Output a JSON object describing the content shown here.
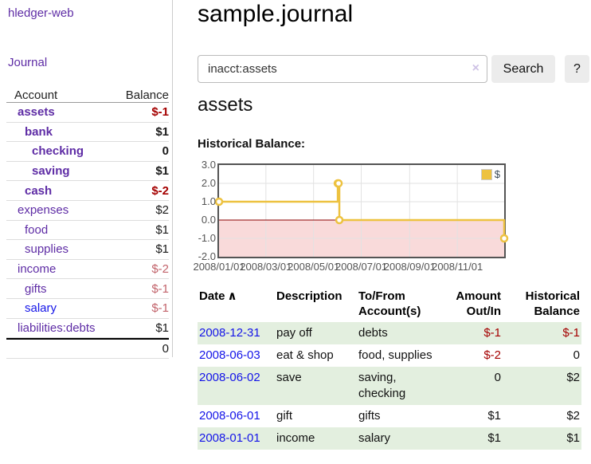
{
  "app": {
    "brand": "hledger-web",
    "nav": {
      "journal": "Journal"
    }
  },
  "sidebar": {
    "header": {
      "account": "Account",
      "balance": "Balance"
    },
    "accounts": [
      {
        "name": "assets",
        "balance": "$-1"
      },
      {
        "name": "bank",
        "balance": "$1"
      },
      {
        "name": "checking",
        "balance": "0"
      },
      {
        "name": "saving",
        "balance": "$1"
      },
      {
        "name": "cash",
        "balance": "$-2"
      },
      {
        "name": "expenses",
        "balance": "$2"
      },
      {
        "name": "food",
        "balance": "$1"
      },
      {
        "name": "supplies",
        "balance": "$1"
      },
      {
        "name": "income",
        "balance": "$-2"
      },
      {
        "name": "gifts",
        "balance": "$-1"
      },
      {
        "name": "salary",
        "balance": "$-1"
      },
      {
        "name": "liabilities:debts",
        "balance": "$1"
      }
    ],
    "total": "0"
  },
  "main": {
    "title": "sample.journal",
    "search": {
      "value": "inacct:assets",
      "clear_icon": "×",
      "button": "Search",
      "help_button": "?"
    },
    "account_heading": "assets",
    "chart_heading": "Historical Balance:"
  },
  "chart_data": {
    "type": "line",
    "step": true,
    "title": "Historical Balance:",
    "series": [
      {
        "name": "$",
        "points": [
          [
            "2008-01-01",
            1
          ],
          [
            "2008-06-01",
            2
          ],
          [
            "2008-06-02",
            2
          ],
          [
            "2008-06-03",
            0
          ],
          [
            "2008-12-31",
            -1
          ]
        ]
      }
    ],
    "xlim": [
      "2008-01-01",
      "2008-12-31"
    ],
    "ylim": [
      -2,
      3
    ],
    "y_tick_labels": [
      "3.0",
      "2.0",
      "1.0",
      "0.0",
      "-1.0",
      "-2.0"
    ],
    "x_ticks": [
      "2008/01/01",
      "2008/03/01",
      "2008/05/01",
      "2008/07/01",
      "2008/09/01",
      "2008/11/01"
    ],
    "legend": {
      "label": "$",
      "position": "top-right"
    },
    "grid": true,
    "colors": {
      "line": "#edc240",
      "marker_fill": "#ffffff",
      "grid": "#e2e2e2",
      "border": "#545454",
      "negative_region": "#f9dada",
      "zero_line": "#8b0000",
      "axis_text": "#545454"
    }
  },
  "register": {
    "headers": {
      "date": "Date",
      "description": "Description",
      "tofrom": "To/From Account(s)",
      "amount": "Amount Out/In",
      "historical": "Historical Balance"
    },
    "sort_icon": "∧",
    "rows": [
      {
        "date": "2008-12-31",
        "description": "pay off",
        "accounts": "debts",
        "amount": "$-1",
        "historical": "$-1"
      },
      {
        "date": "2008-06-03",
        "description": "eat & shop",
        "accounts": "food, supplies",
        "amount": "$-2",
        "historical": "0"
      },
      {
        "date": "2008-06-02",
        "description": "save",
        "accounts": "saving, checking",
        "amount": "0",
        "historical": "$2"
      },
      {
        "date": "2008-06-01",
        "description": "gift",
        "accounts": "gifts",
        "amount": "$1",
        "historical": "$2"
      },
      {
        "date": "2008-01-01",
        "description": "income",
        "accounts": "salary",
        "amount": "$1",
        "historical": "$1"
      }
    ]
  }
}
